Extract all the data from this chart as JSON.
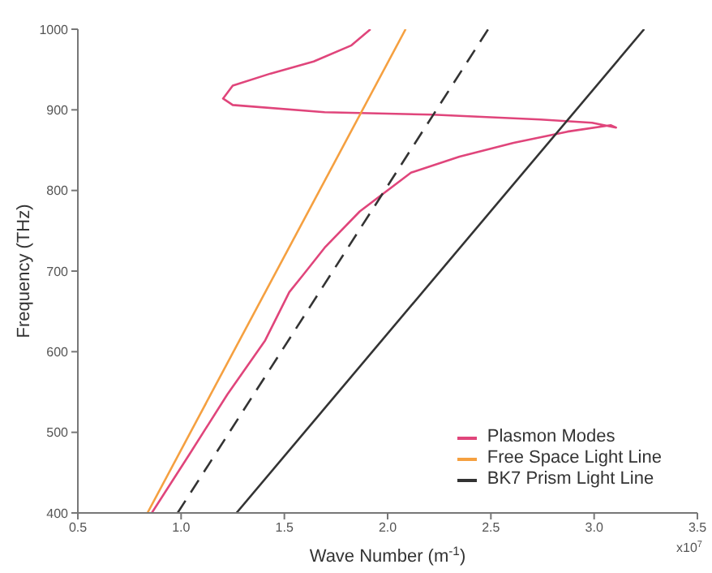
{
  "chart_data": {
    "type": "line",
    "xlabel": "Wave Number (m$^{-1}$)",
    "ylabel": "Frequency (THz)",
    "xlim": [
      0.5,
      3.5
    ],
    "ylim": [
      400,
      1000
    ],
    "xticks": [
      0.5,
      {
        "value": 1,
        "label": "1.0"
      },
      1.5,
      {
        "value": 2,
        "label": "2.0"
      },
      2.5,
      {
        "value": 3,
        "label": "3.0"
      },
      3.5
    ],
    "yticks": [
      400,
      500,
      600,
      700,
      800,
      900,
      1000
    ],
    "grid": false,
    "legend": "bottom right",
    "annotations": [
      "x10$^{7}$"
    ],
    "series": [
      {
        "name": "Plasmon Modes",
        "color": "#e0457b",
        "x": [
          0.858,
          1.041,
          1.224,
          1.407,
          1.524,
          1.59,
          1.695,
          1.865,
          2.113,
          2.348,
          2.61,
          2.871,
          3.08,
          3.106,
          2.99,
          2.74,
          2.218,
          1.695,
          1.25,
          1.203,
          1.25,
          1.433,
          1.642,
          1.825,
          1.917
        ],
        "values": [
          400,
          473,
          547,
          614,
          674,
          695,
          729,
          774,
          822,
          842,
          859,
          873,
          881,
          878,
          884,
          888,
          894,
          897,
          906,
          914,
          930,
          945,
          960,
          980,
          1000
        ]
      },
      {
        "name": "Free Space Light Line",
        "color": "#f5a040",
        "x": [
          0.837,
          2.087
        ],
        "values": [
          400,
          1000
        ]
      },
      {
        "color": "#333333",
        "line_style": "dashed",
        "x": [
          0.983,
          2.487
        ],
        "values": [
          400,
          1000
        ]
      },
      {
        "name": "BK7 Prism Light Line",
        "color": "#333333",
        "x": [
          1.268,
          3.242
        ],
        "values": [
          400,
          1000
        ]
      }
    ]
  }
}
